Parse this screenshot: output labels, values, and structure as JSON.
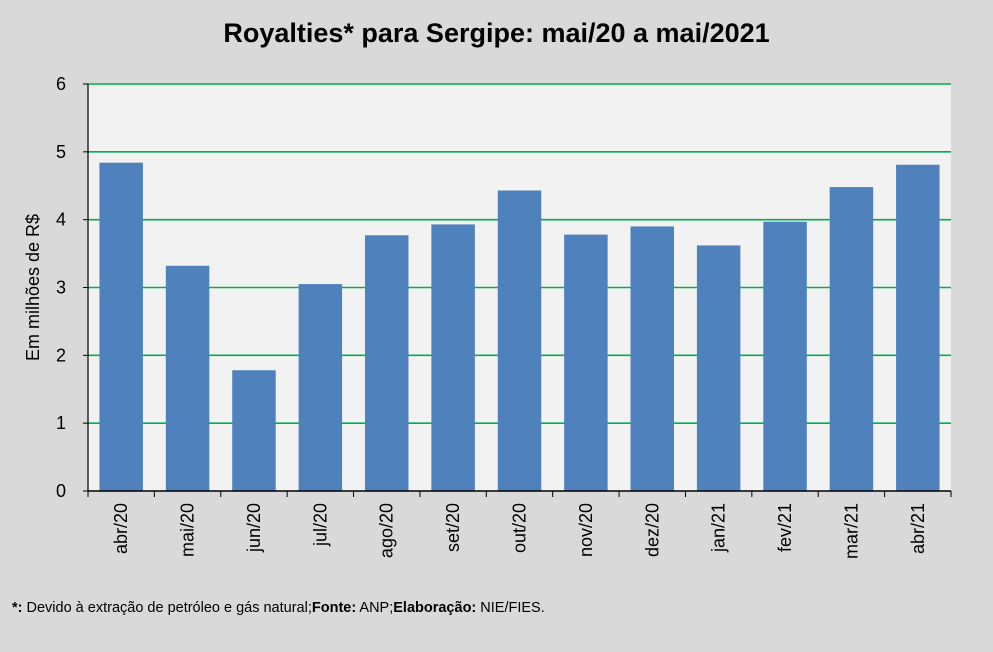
{
  "chart_data": {
    "type": "bar",
    "title": "Royalties* para Sergipe: mai/20 a mai/2021",
    "ylabel": "Em milhões de R$",
    "xlabel": "",
    "categories": [
      "abr/20",
      "mai/20",
      "jun/20",
      "jul/20",
      "ago/20",
      "set/20",
      "out/20",
      "nov/20",
      "dez/20",
      "jan/21",
      "fev/21",
      "mar/21",
      "abr/21"
    ],
    "values": [
      4.84,
      3.32,
      1.78,
      3.05,
      3.77,
      3.93,
      4.43,
      3.78,
      3.9,
      3.62,
      3.97,
      4.48,
      4.81
    ],
    "ylim": [
      0,
      6
    ],
    "yticks": [
      "0",
      "1",
      "2",
      "3",
      "4",
      "5",
      "6"
    ],
    "grid": true,
    "legend": "none",
    "colors": {
      "bar": "#4f81bd",
      "gridline": "#00b050",
      "plot_background": "#f2f2f2",
      "page_background": "#d9d9d9"
    }
  },
  "footnote": {
    "star_mark": "*:",
    "star_text": " Devido à extração de petróleo e gás natural;",
    "source_label": "Fonte:",
    "source_text": " ANP;",
    "credit_label": "Elaboração:",
    "credit_text": " NIE/FIES."
  }
}
